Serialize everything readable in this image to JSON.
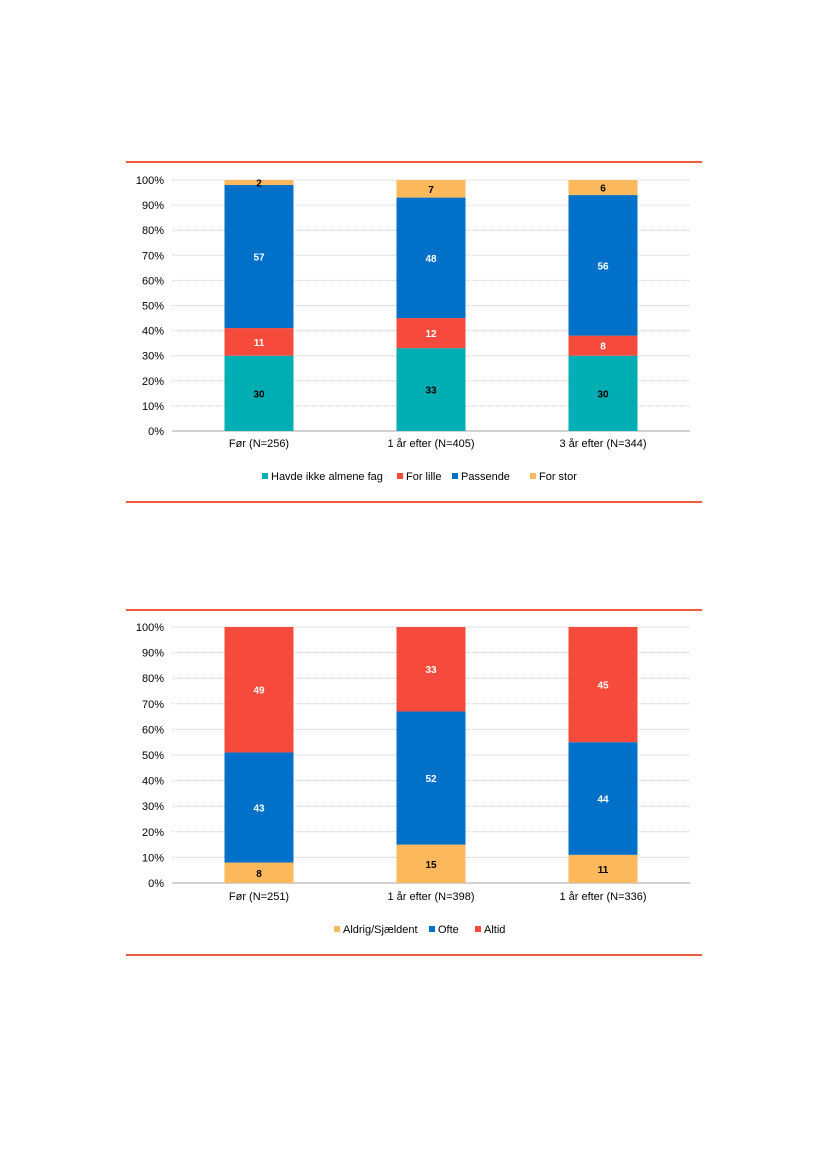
{
  "colors": {
    "teal": "#00aeb4",
    "red": "#f64b3c",
    "blue": "#0070c9",
    "yellow": "#fcb95b",
    "rule": "#f15a3a",
    "grid": "#c8c8c8"
  },
  "chart_data": [
    {
      "type": "bar",
      "stacked": true,
      "categories": [
        "Før (N=256)",
        "1 år efter (N=405)",
        "3 år efter (N=344)"
      ],
      "series": [
        {
          "name": "Havde ikke almene fag",
          "color": "#00aeb4",
          "label_color": "#000000",
          "values": [
            30,
            33,
            30
          ]
        },
        {
          "name": "For lille",
          "color": "#f64b3c",
          "label_color": "#ffffff",
          "values": [
            11,
            12,
            8
          ]
        },
        {
          "name": "Passende",
          "color": "#0070c9",
          "label_color": "#ffffff",
          "values": [
            57,
            48,
            56
          ]
        },
        {
          "name": "For stor",
          "color": "#fcb95b",
          "label_color": "#000000",
          "values": [
            2,
            7,
            6
          ]
        }
      ],
      "yticks": [
        "0%",
        "10%",
        "20%",
        "30%",
        "40%",
        "50%",
        "60%",
        "70%",
        "80%",
        "90%",
        "100%"
      ],
      "ylim": [
        0,
        100
      ],
      "grid": true,
      "legend": "bottom"
    },
    {
      "type": "bar",
      "stacked": true,
      "categories": [
        "Før (N=251)",
        "1 år efter (N=398)",
        "1 år efter (N=336)"
      ],
      "series": [
        {
          "name": "Aldrig/Sjældent",
          "color": "#fcb95b",
          "label_color": "#000000",
          "values": [
            8,
            15,
            11
          ]
        },
        {
          "name": "Ofte",
          "color": "#0070c9",
          "label_color": "#ffffff",
          "values": [
            43,
            52,
            44
          ]
        },
        {
          "name": "Altid",
          "color": "#f64b3c",
          "label_color": "#ffffff",
          "values": [
            49,
            33,
            45
          ]
        }
      ],
      "yticks": [
        "0%",
        "10%",
        "20%",
        "30%",
        "40%",
        "50%",
        "60%",
        "70%",
        "80%",
        "90%",
        "100%"
      ],
      "ylim": [
        0,
        100
      ],
      "grid": true,
      "legend": "bottom"
    }
  ]
}
